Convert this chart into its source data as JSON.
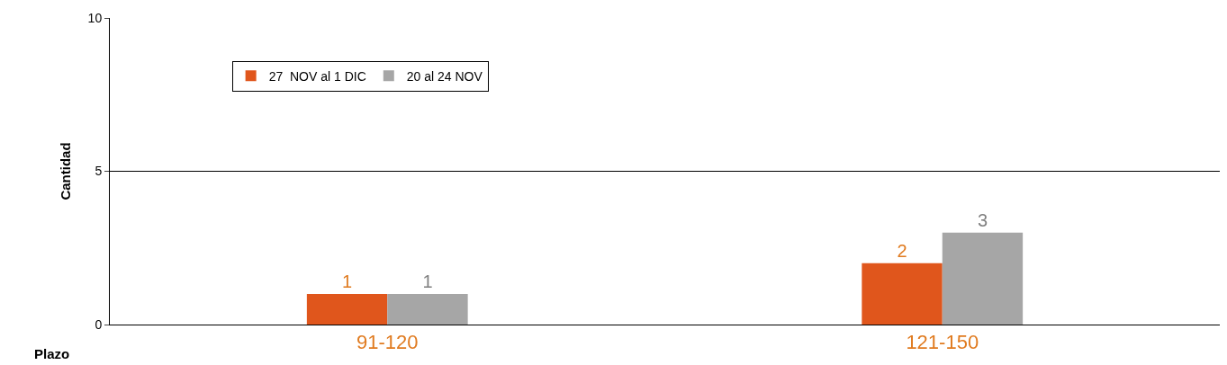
{
  "chart_data": {
    "type": "bar",
    "ylabel": "Cantidad",
    "xlabel": "Plazo",
    "categories": [
      "91-120",
      "121-150"
    ],
    "series": [
      {
        "name": "27  NOV al 1 DIC",
        "color": "#e0561c",
        "values": [
          1,
          2
        ]
      },
      {
        "name": "20 al 24 NOV",
        "color": "#a6a6a6",
        "values": [
          1,
          3
        ]
      }
    ],
    "ylim": [
      0,
      10
    ],
    "yticks": [
      0,
      5,
      10
    ],
    "grid": "y",
    "legend": "top left",
    "data_labels": true
  }
}
